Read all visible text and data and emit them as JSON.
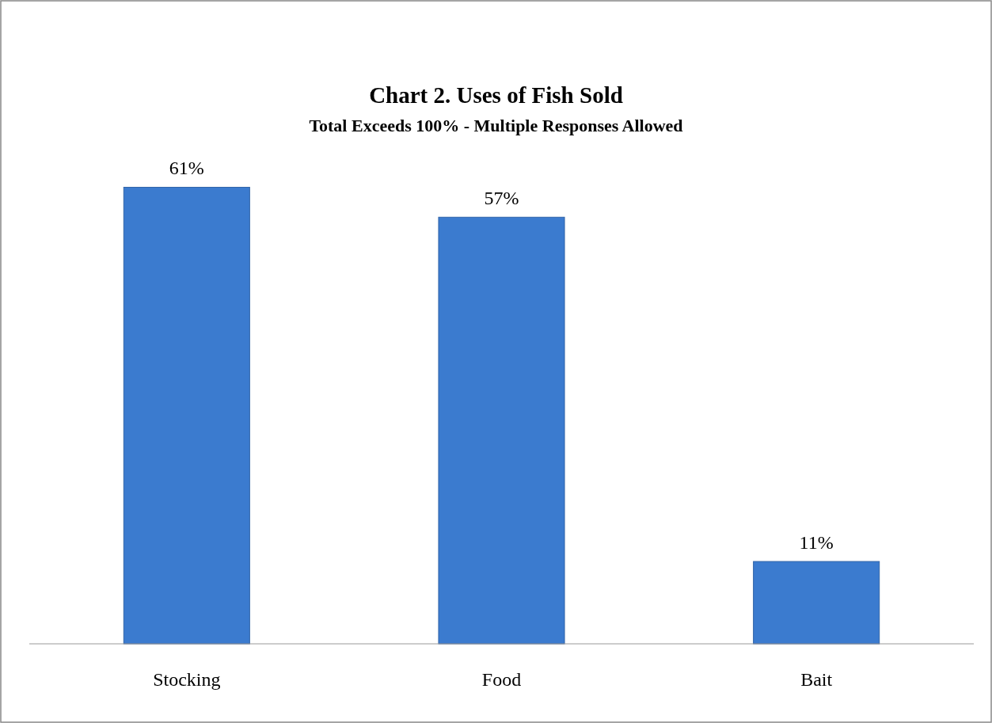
{
  "chart_data": {
    "type": "bar",
    "title": "Chart 2. Uses of Fish Sold",
    "subtitle": "Total Exceeds 100% - Multiple Responses Allowed",
    "categories": [
      "Stocking",
      "Food",
      "Bait"
    ],
    "values": [
      61,
      57,
      11
    ],
    "value_labels": [
      "61%",
      "57%",
      "11%"
    ],
    "color": "#3b7bcf"
  }
}
